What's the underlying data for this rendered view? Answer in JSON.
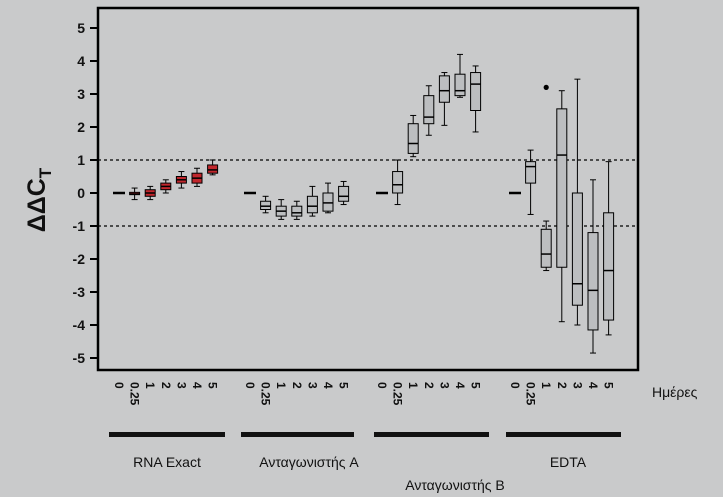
{
  "chart_data": {
    "type": "boxplot",
    "ylabel_main": "ΔΔC",
    "ylabel_sub": "T",
    "ylim": [
      -5.6,
      5.6
    ],
    "yticks": [
      5,
      4,
      3,
      2,
      1,
      0,
      -1,
      -2,
      -3,
      -4,
      -5
    ],
    "ytick_labels": [
      "5",
      "4",
      "3",
      "2",
      "1",
      "0",
      "-1",
      "-2",
      "-3",
      "-4",
      "-5"
    ],
    "reference_lines": [
      1,
      -1
    ],
    "x_unit_label": "Ημέρες",
    "day_labels": [
      "0",
      "0.25",
      "1",
      "2",
      "3",
      "4",
      "5"
    ],
    "colors": {
      "red_box": "#c1272d",
      "gray_box": "#bcbec0",
      "background": "#c9cacb"
    },
    "groups": [
      {
        "name": "RNA Exact",
        "color": "red",
        "boxes": [
          {
            "day": "0",
            "flat": true,
            "median": 0
          },
          {
            "day": "0.25",
            "whisker_low": -0.2,
            "q1": -0.05,
            "median": -0.03,
            "q3": 0.02,
            "whisker_high": 0.15
          },
          {
            "day": "1",
            "whisker_low": -0.2,
            "q1": -0.1,
            "median": 0.0,
            "q3": 0.1,
            "whisker_high": 0.2
          },
          {
            "day": "2",
            "whisker_low": 0.0,
            "q1": 0.1,
            "median": 0.2,
            "q3": 0.3,
            "whisker_high": 0.4
          },
          {
            "day": "3",
            "whisker_low": 0.15,
            "q1": 0.3,
            "median": 0.4,
            "q3": 0.5,
            "whisker_high": 0.65
          },
          {
            "day": "4",
            "whisker_low": 0.2,
            "q1": 0.3,
            "median": 0.45,
            "q3": 0.6,
            "whisker_high": 0.75
          },
          {
            "day": "5",
            "whisker_low": 0.55,
            "q1": 0.6,
            "median": 0.7,
            "q3": 0.85,
            "whisker_high": 1.0
          }
        ]
      },
      {
        "name": "Ανταγωνιστής A",
        "color": "gray",
        "boxes": [
          {
            "day": "0",
            "flat": true,
            "median": 0
          },
          {
            "day": "0.25",
            "whisker_low": -0.6,
            "q1": -0.5,
            "median": -0.4,
            "q3": -0.25,
            "whisker_high": -0.1
          },
          {
            "day": "1",
            "whisker_low": -0.8,
            "q1": -0.7,
            "median": -0.55,
            "q3": -0.4,
            "whisker_high": -0.2
          },
          {
            "day": "2",
            "whisker_low": -0.8,
            "q1": -0.7,
            "median": -0.6,
            "q3": -0.4,
            "whisker_high": -0.25
          },
          {
            "day": "3",
            "whisker_low": -0.7,
            "q1": -0.6,
            "median": -0.4,
            "q3": -0.1,
            "whisker_high": 0.2
          },
          {
            "day": "4",
            "whisker_low": -0.6,
            "q1": -0.55,
            "median": -0.3,
            "q3": 0.0,
            "whisker_high": 0.3
          },
          {
            "day": "5",
            "whisker_low": -0.35,
            "q1": -0.25,
            "median": -0.1,
            "q3": 0.2,
            "whisker_high": 0.35
          }
        ]
      },
      {
        "name": "Ανταγωνιστής B",
        "color": "gray",
        "boxes": [
          {
            "day": "0",
            "flat": true,
            "median": 0
          },
          {
            "day": "0.25",
            "whisker_low": -0.35,
            "q1": 0.0,
            "median": 0.25,
            "q3": 0.65,
            "whisker_high": 1.0
          },
          {
            "day": "1",
            "whisker_low": 1.1,
            "q1": 1.2,
            "median": 1.5,
            "q3": 2.1,
            "whisker_high": 2.35
          },
          {
            "day": "2",
            "whisker_low": 1.75,
            "q1": 2.1,
            "median": 2.3,
            "q3": 2.95,
            "whisker_high": 3.25
          },
          {
            "day": "3",
            "whisker_low": 2.05,
            "q1": 2.75,
            "median": 3.1,
            "q3": 3.55,
            "whisker_high": 3.65
          },
          {
            "day": "4",
            "whisker_low": 2.9,
            "q1": 2.95,
            "median": 3.1,
            "q3": 3.6,
            "whisker_high": 4.2
          },
          {
            "day": "5",
            "whisker_low": 1.85,
            "q1": 2.5,
            "median": 3.3,
            "q3": 3.65,
            "whisker_high": 3.85
          }
        ]
      },
      {
        "name": "EDTA",
        "color": "gray",
        "boxes": [
          {
            "day": "0",
            "flat": true,
            "median": 0
          },
          {
            "day": "0.25",
            "whisker_low": -0.65,
            "q1": 0.3,
            "median": 0.8,
            "q3": 0.95,
            "whisker_high": 1.3
          },
          {
            "day": "1",
            "whisker_low": -2.35,
            "q1": -2.25,
            "median": -1.85,
            "q3": -1.1,
            "whisker_high": -0.85,
            "outliers": [
              3.2
            ]
          },
          {
            "day": "2",
            "whisker_low": -3.9,
            "q1": -2.25,
            "median": 1.15,
            "q3": 2.55,
            "whisker_high": 3.1
          },
          {
            "day": "3",
            "whisker_low": -4.0,
            "q1": -3.4,
            "median": -2.75,
            "q3": 0.0,
            "whisker_high": 3.45
          },
          {
            "day": "4",
            "whisker_low": -4.85,
            "q1": -4.15,
            "median": -2.95,
            "q3": -1.2,
            "whisker_high": 0.4
          },
          {
            "day": "5",
            "whisker_low": -4.3,
            "q1": -3.85,
            "median": -2.35,
            "q3": -0.6,
            "whisker_high": 0.95
          }
        ]
      }
    ]
  }
}
